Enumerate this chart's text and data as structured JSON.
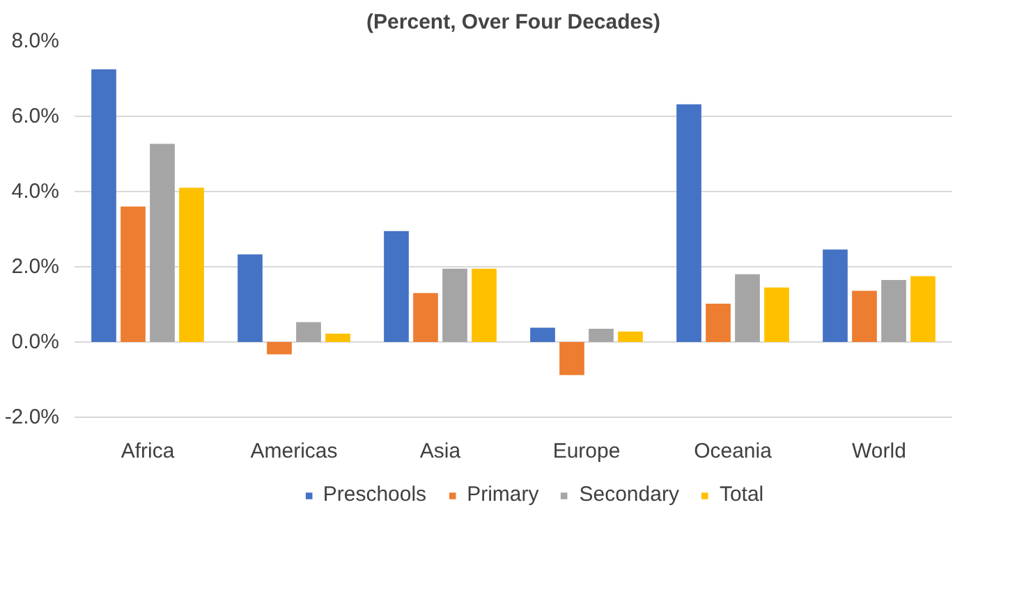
{
  "chart_data": {
    "type": "bar",
    "title": "(Percent, Over Four Decades)",
    "categories": [
      "Africa",
      "Americas",
      "Asia",
      "Europe",
      "Oceania",
      "World"
    ],
    "series": [
      {
        "name": "Preschools",
        "color": "#4472c4",
        "values": [
          7.25,
          2.33,
          2.95,
          0.38,
          6.32,
          2.46
        ]
      },
      {
        "name": "Primary",
        "color": "#ed7d31",
        "values": [
          3.6,
          -0.33,
          1.3,
          -0.88,
          1.02,
          1.36
        ]
      },
      {
        "name": "Secondary",
        "color": "#a5a5a5",
        "values": [
          5.27,
          0.53,
          1.95,
          0.35,
          1.8,
          1.65
        ]
      },
      {
        "name": "Total",
        "color": "#ffc000",
        "values": [
          4.1,
          0.22,
          1.95,
          0.28,
          1.45,
          1.75
        ]
      }
    ],
    "ylim": [
      -2,
      8
    ],
    "yticks": [
      {
        "value": -2,
        "label": "-2.0%"
      },
      {
        "value": 0,
        "label": "0.0%"
      },
      {
        "value": 2,
        "label": "2.0%"
      },
      {
        "value": 4,
        "label": "4.0%"
      },
      {
        "value": 6,
        "label": "6.0%"
      },
      {
        "value": 8,
        "label": "8.0%"
      }
    ],
    "grid": "y",
    "legend": "bottom"
  }
}
